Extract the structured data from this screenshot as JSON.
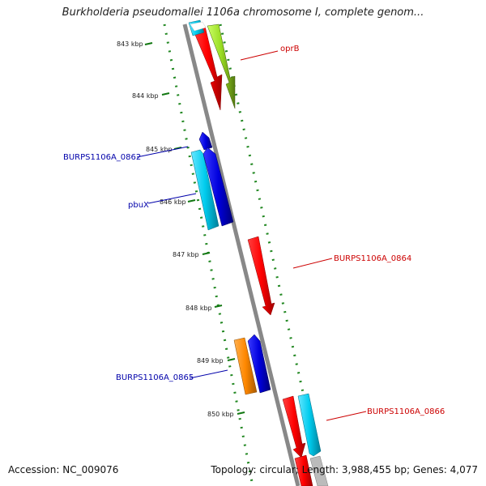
{
  "title": "Burkholderia pseudomallei 1106a chromosome I, complete genom...",
  "footer": {
    "accession": "Accession: NC_009076",
    "summary": "Topology: circular; Length: 3,988,455 bp; Genes: 4,077"
  },
  "ticks": [
    "843 kbp",
    "844 kbp",
    "845 kbp",
    "846 kbp",
    "847 kbp",
    "848 kbp",
    "849 kbp",
    "850 kbp"
  ],
  "gene_labels": [
    {
      "text": "oprB",
      "color": "#cc0000"
    },
    {
      "text": "BURPS1106A_0862",
      "color": "#0000aa"
    },
    {
      "text": "pbuX",
      "color": "#0000aa"
    },
    {
      "text": "BURPS1106A_0864",
      "color": "#cc0000"
    },
    {
      "text": "BURPS1106A_0865",
      "color": "#0000aa"
    },
    {
      "text": "BURPS1106A_0866",
      "color": "#cc0000"
    }
  ],
  "colors": {
    "red": "#ff0000",
    "blue": "#0000dd",
    "cyan": "#00ccee",
    "orange": "#ff8800",
    "lime": "#99dd22",
    "backbone": "#888888",
    "dots": "#228822"
  }
}
